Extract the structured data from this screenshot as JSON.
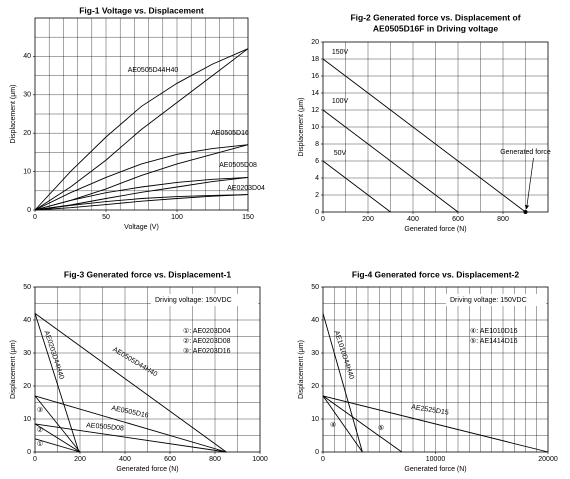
{
  "chart_data": [
    {
      "type": "line",
      "title": [
        "Fig-1  Voltage vs. Displacement"
      ],
      "xlabel": "Voltage (V)",
      "ylabel": "Displacement (μm)",
      "xlim": [
        0,
        150
      ],
      "ylim": [
        0,
        50
      ],
      "xticks": [
        0,
        50,
        100,
        150
      ],
      "yticks": [
        0,
        10,
        20,
        30,
        40
      ],
      "minor_grid": {
        "x": 10,
        "y": 5
      },
      "color": "#000000",
      "x": [
        0,
        25,
        50,
        75,
        100,
        125,
        150
      ],
      "series": [
        {
          "name": "AE0505D44H40",
          "values": [
            0,
            6,
            13,
            21,
            28,
            35,
            42
          ],
          "values_return": [
            0,
            10,
            19,
            27,
            33,
            38,
            42
          ]
        },
        {
          "name": "AE0505D16",
          "values": [
            0,
            2.5,
            5.5,
            9,
            12,
            14.5,
            17
          ],
          "values_return": [
            0,
            4.5,
            8.5,
            12,
            14.5,
            16,
            17
          ]
        },
        {
          "name": "AE0505D08",
          "values": [
            0,
            1.3,
            3,
            4.6,
            6,
            7.4,
            8.5
          ],
          "values_return": [
            0,
            2.5,
            4.5,
            6,
            7.2,
            8,
            8.5
          ]
        },
        {
          "name": "AE0203D04",
          "values": [
            0,
            0.6,
            1.4,
            2.3,
            3,
            3.6,
            4
          ],
          "values_return": [
            0,
            1.2,
            2.2,
            3,
            3.5,
            3.8,
            4
          ]
        }
      ]
    },
    {
      "type": "line",
      "title": [
        "Fig-2  Generated force vs. Displacement of",
        "AE0505D16F in Driving voltage"
      ],
      "xlabel": "Generated force (N)",
      "ylabel": "Displacement (μm)",
      "xlim": [
        0,
        1000
      ],
      "ylim": [
        0,
        20
      ],
      "xticks": [
        0,
        200,
        400,
        600,
        800
      ],
      "yticks": [
        0,
        2,
        4,
        6,
        8,
        10,
        12,
        14,
        16,
        18,
        20
      ],
      "minor_grid": {
        "x": 100,
        "y": 2
      },
      "color": "#000000",
      "series": [
        {
          "name": "150V",
          "x": [
            0,
            900
          ],
          "values": [
            18,
            0
          ]
        },
        {
          "name": "100V",
          "x": [
            0,
            600
          ],
          "values": [
            12,
            0
          ]
        },
        {
          "name": "50V",
          "x": [
            0,
            300
          ],
          "values": [
            6,
            0
          ]
        }
      ],
      "annotations": [
        {
          "text": "Generated force",
          "x": 900,
          "y": 0
        }
      ]
    },
    {
      "type": "line",
      "title": [
        "Fig-3  Generated force vs. Displacement-1"
      ],
      "xlabel": "Generated force (N)",
      "ylabel": "Displacement (μm)",
      "xlim": [
        0,
        1000
      ],
      "ylim": [
        0,
        50
      ],
      "xticks": [
        0,
        200,
        400,
        600,
        800,
        1000
      ],
      "yticks": [
        0,
        10,
        20,
        30,
        40,
        50
      ],
      "minor_grid": {
        "x": 100,
        "y": 5
      },
      "color": "#000000",
      "note": "Driving voltage: 150VDC",
      "legend": [
        "①: AE0203D04",
        "②: AE0203D08",
        "③: AE0203D16"
      ],
      "series": [
        {
          "name": "AE0203D44H40",
          "x": [
            0,
            195
          ],
          "values": [
            42,
            0
          ]
        },
        {
          "name": "AE0505D44H40",
          "x": [
            0,
            850
          ],
          "values": [
            42,
            0
          ]
        },
        {
          "name": "AE0505D16",
          "x": [
            0,
            850
          ],
          "values": [
            17,
            0
          ]
        },
        {
          "name": "AE0505D08",
          "x": [
            0,
            850
          ],
          "values": [
            8.5,
            0
          ]
        },
        {
          "tag": "③",
          "x": [
            0,
            200
          ],
          "values": [
            17,
            0
          ]
        },
        {
          "tag": "②",
          "x": [
            0,
            200
          ],
          "values": [
            8.5,
            0
          ]
        },
        {
          "tag": "①",
          "x": [
            0,
            200
          ],
          "values": [
            4,
            0
          ]
        }
      ]
    },
    {
      "type": "line",
      "title": [
        "Fig-4  Generated force vs. Displacement-2"
      ],
      "xlabel": "Generated force (N)",
      "ylabel": "Displacement (μm)",
      "xlim": [
        0,
        20000
      ],
      "ylim": [
        0,
        50
      ],
      "xticks": [
        0,
        10000,
        20000
      ],
      "yticks": [
        0,
        10,
        20,
        30,
        40,
        50
      ],
      "minor_grid": {
        "x": 1000,
        "y": 5
      },
      "color": "#000000",
      "note": "Driving voltage: 150VDC",
      "legend": [
        "④: AE1010D16",
        "⑤: AE1414D16"
      ],
      "series": [
        {
          "name": "AE1010D44H40",
          "x": [
            0,
            3500
          ],
          "values": [
            42,
            0
          ]
        },
        {
          "name": "AE2525D15",
          "x": [
            0,
            20000
          ],
          "values": [
            17,
            0
          ]
        },
        {
          "tag": "④",
          "x": [
            0,
            3500
          ],
          "values": [
            17,
            0
          ]
        },
        {
          "tag": "⑤",
          "x": [
            0,
            7000
          ],
          "values": [
            17,
            0
          ]
        }
      ]
    }
  ]
}
